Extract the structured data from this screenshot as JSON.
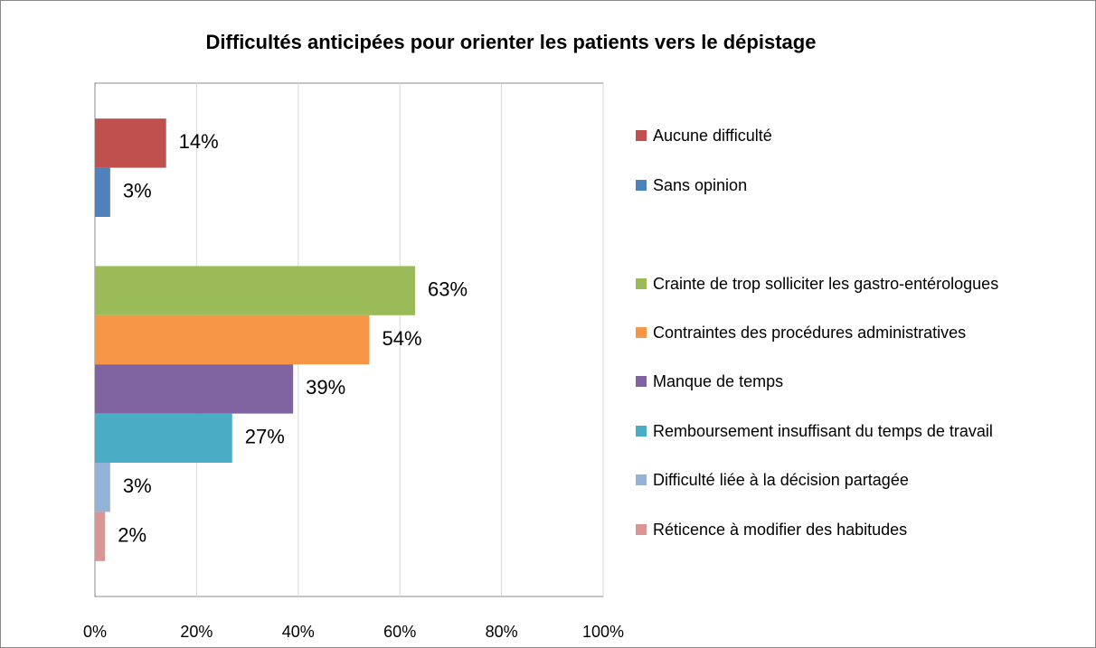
{
  "chart_data": {
    "type": "bar",
    "orientation": "horizontal",
    "title": "Difficultés anticipées pour orienter les patients vers le dépistage",
    "categories": [
      null,
      null
    ],
    "series": [
      {
        "name": "Aucune difficulté",
        "color": "#c0504d",
        "values": [
          14,
          null
        ],
        "value_labels": [
          "14%",
          null
        ]
      },
      {
        "name": "Sans opinion",
        "color": "#4f81bd",
        "values": [
          3,
          null
        ],
        "value_labels": [
          "3%",
          null
        ]
      },
      {
        "name": "Crainte de trop solliciter les gastro-entérologues",
        "color": "#9bbb59",
        "values": [
          null,
          63
        ],
        "value_labels": [
          null,
          "63%"
        ]
      },
      {
        "name": "Contraintes des procédures administratives",
        "color": "#f79646",
        "values": [
          null,
          54
        ],
        "value_labels": [
          null,
          "54%"
        ]
      },
      {
        "name": "Manque de temps",
        "color": "#8064a2",
        "values": [
          null,
          39
        ],
        "value_labels": [
          null,
          "39%"
        ]
      },
      {
        "name": "Remboursement insuffisant du temps de travail",
        "color": "#4bacc6",
        "values": [
          null,
          27
        ],
        "value_labels": [
          null,
          "27%"
        ]
      },
      {
        "name": "Difficulté liée à la décision partagée",
        "color": "#95b3d7",
        "values": [
          null,
          3
        ],
        "value_labels": [
          null,
          "3%"
        ]
      },
      {
        "name": "Réticence à modifier des habitudes",
        "color": "#da9694",
        "values": [
          null,
          2
        ],
        "value_labels": [
          null,
          "2%"
        ]
      }
    ],
    "xlim": [
      0,
      100
    ],
    "xticks": [
      {
        "value": 0,
        "label": "0%"
      },
      {
        "value": 20,
        "label": "20%"
      },
      {
        "value": 40,
        "label": "40%"
      },
      {
        "value": 60,
        "label": "60%"
      },
      {
        "value": 80,
        "label": "80%"
      },
      {
        "value": 100,
        "label": "100%"
      }
    ],
    "grid": true,
    "legend": "right"
  }
}
